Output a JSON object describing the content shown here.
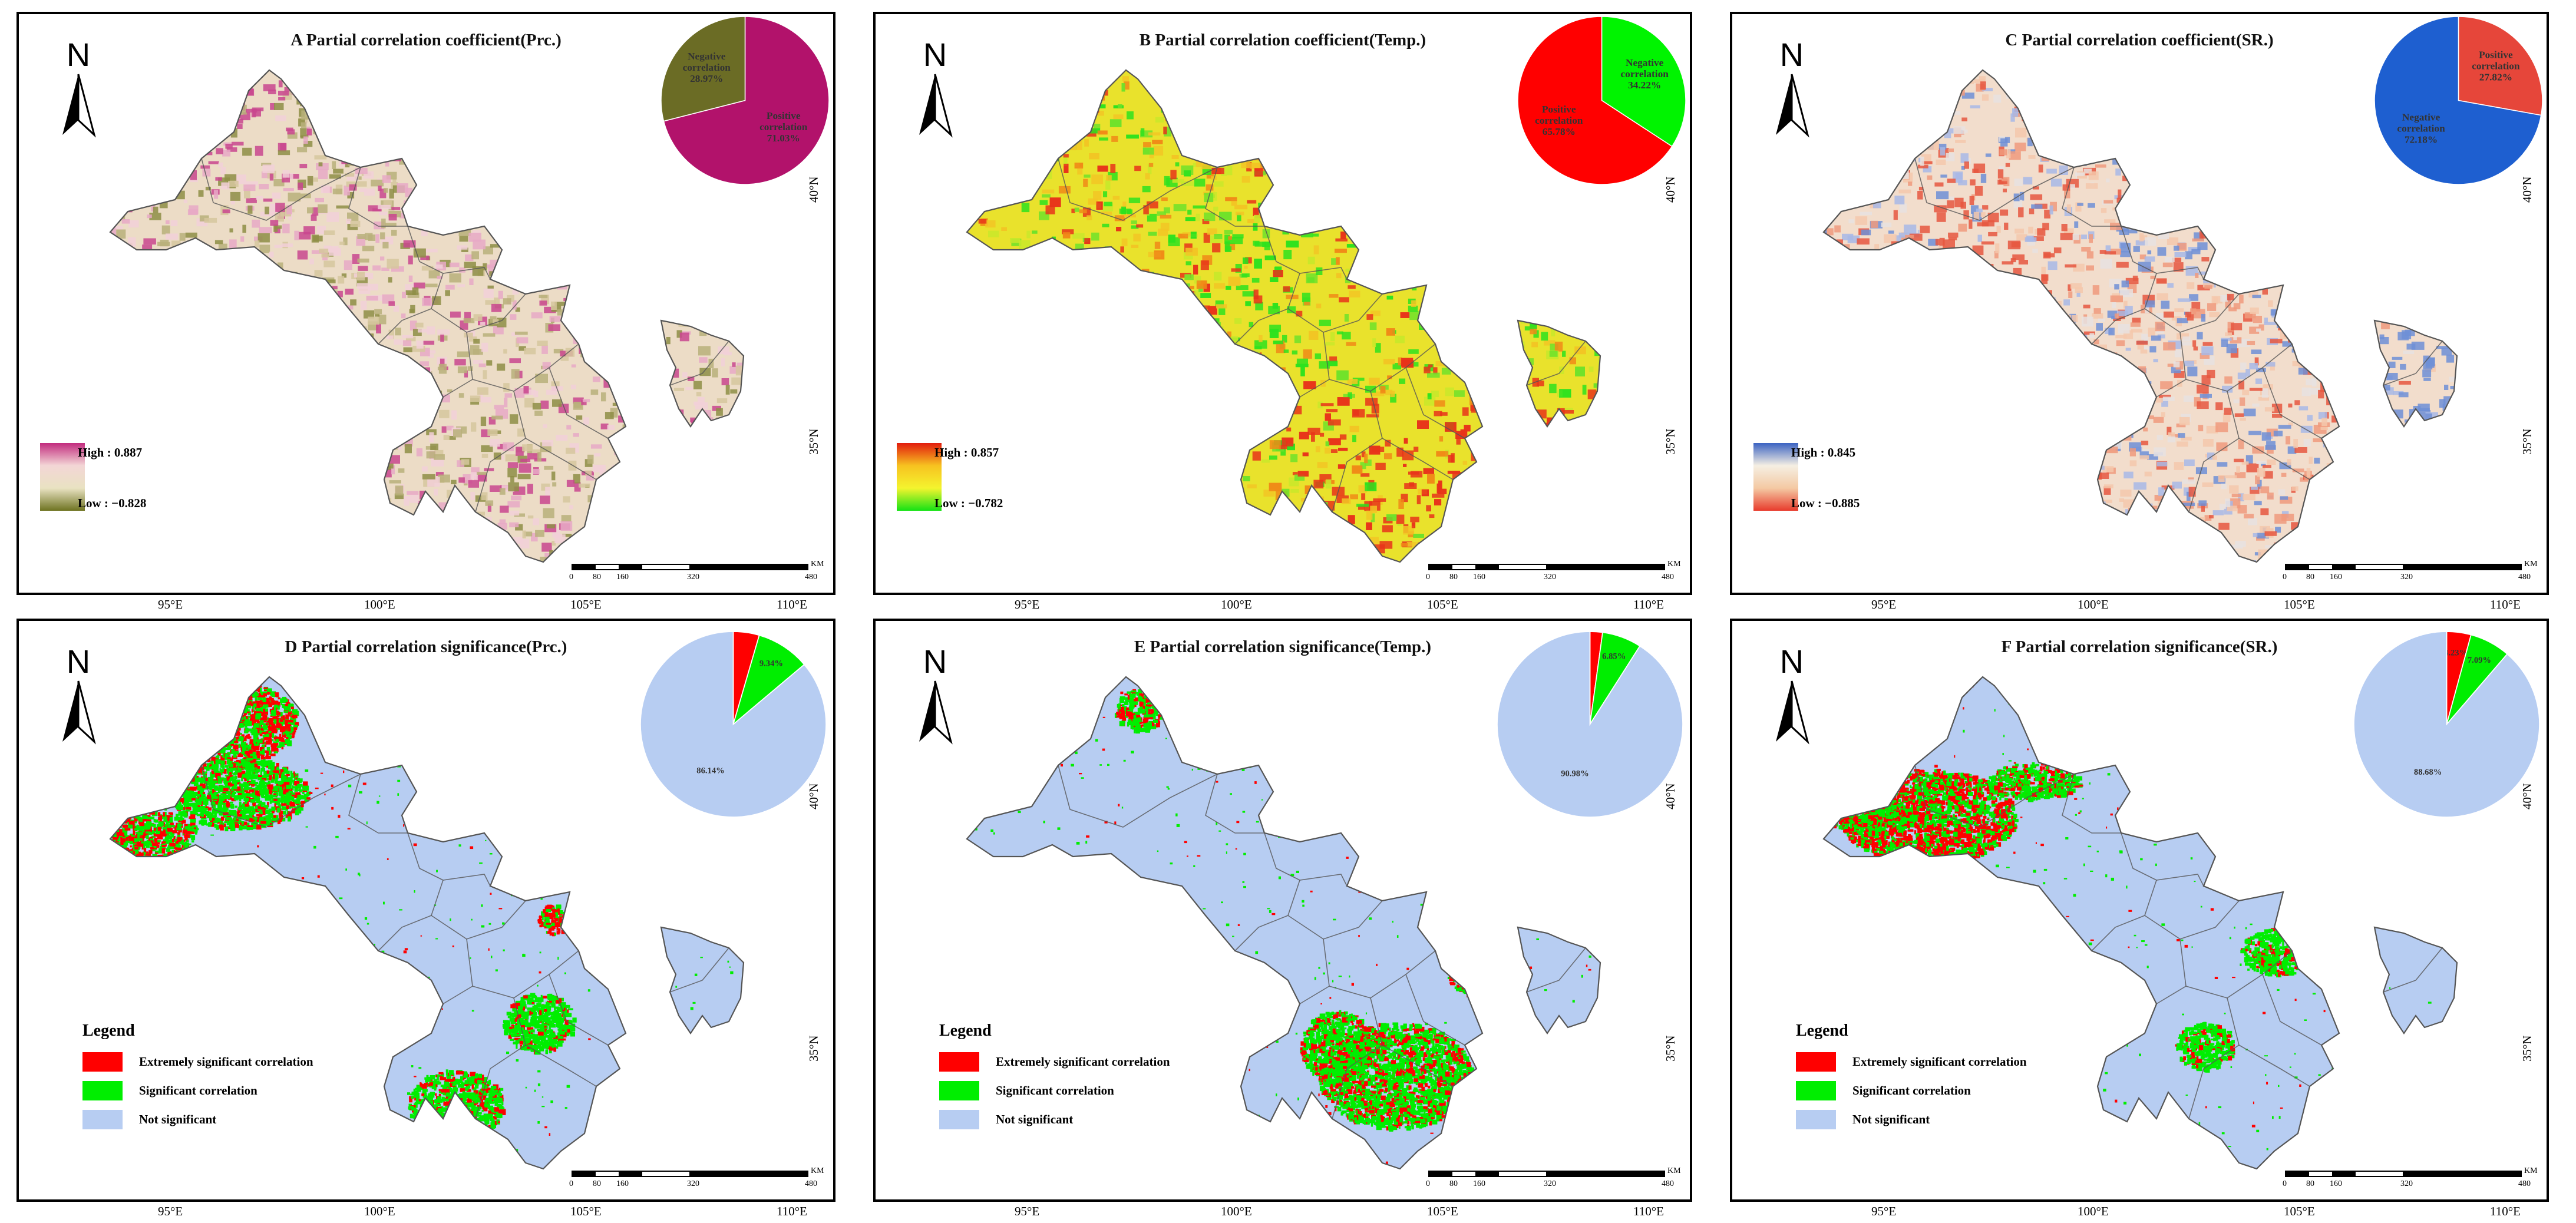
{
  "figure": {
    "panels": [
      {
        "id": "A",
        "title": "A Partial correlation coefficient(Prc.)",
        "north": "N",
        "map_style": "prc",
        "legend": {
          "type": "gradient",
          "high": "High : 0.887",
          "low": "Low : −0.828",
          "colors": [
            "#c22b7e",
            "#f3d6d6",
            "#e9e2c2",
            "#6e7321"
          ]
        },
        "pie": {
          "slices": [
            {
              "label": "Positive\ncorrelation\n71.03%",
              "value": 71.03,
              "color": "#b2126b"
            },
            {
              "label": "Negative\ncorrelation\n28.97%",
              "value": 28.97,
              "color": "#6b6c25"
            }
          ]
        },
        "lat_labels": [
          "40°N",
          "35°N"
        ],
        "lon_labels": [
          "95°E",
          "100°E",
          "105°E",
          "110°E"
        ],
        "scale_labels": [
          "0",
          "80",
          "160",
          "320",
          "480"
        ],
        "scale_unit": "KM"
      },
      {
        "id": "B",
        "title": "B Partial correlation coefficient(Temp.)",
        "north": "N",
        "map_style": "temp",
        "legend": {
          "type": "gradient",
          "high": "High : 0.857",
          "low": "Low : −0.782",
          "colors": [
            "#e21c0e",
            "#f7c220",
            "#f4f42e",
            "#14e215"
          ]
        },
        "pie": {
          "slices": [
            {
              "label": "Negative\ncorrelation\n34.22%",
              "value": 34.22,
              "color": "#00f400"
            },
            {
              "label": "Positive\ncorrelation\n65.78%",
              "value": 65.78,
              "color": "#ff0000"
            }
          ]
        },
        "lat_labels": [
          "40°N",
          "35°N"
        ],
        "lon_labels": [
          "95°E",
          "100°E",
          "105°E",
          "110°E"
        ],
        "scale_labels": [
          "0",
          "80",
          "160",
          "320",
          "480"
        ],
        "scale_unit": "KM"
      },
      {
        "id": "C",
        "title": "C Partial correlation coefficient(SR.)",
        "north": "N",
        "map_style": "sr",
        "legend": {
          "type": "gradient",
          "high": "High : 0.845",
          "low": "Low : −0.885",
          "colors": [
            "#3b63c2",
            "#f5efe3",
            "#f4c9a3",
            "#e83b2c"
          ]
        },
        "pie": {
          "slices": [
            {
              "label": "Positive\ncorrelation\n27.82%",
              "value": 27.82,
              "color": "#e6463a"
            },
            {
              "label": "Negative\ncorrelation\n72.18%",
              "value": 72.18,
              "color": "#1e5fd0"
            }
          ]
        },
        "lat_labels": [
          "40°N",
          "35°N"
        ],
        "lon_labels": [
          "95°E",
          "100°E",
          "105°E",
          "110°E"
        ],
        "scale_labels": [
          "0",
          "80",
          "160",
          "320",
          "480"
        ],
        "scale_unit": "KM"
      },
      {
        "id": "D",
        "title": "D Partial correlation significance(Prc.)",
        "north": "N",
        "map_style": "sig_prc",
        "legend": {
          "type": "categorical",
          "title": "Legend",
          "items": [
            {
              "label": "Extremely significant correlation",
              "color": "#ff0000"
            },
            {
              "label": "Significant correlation",
              "color": "#00ee00"
            },
            {
              "label": "Not significant",
              "color": "#b7cdf2"
            }
          ]
        },
        "pie": {
          "slices": [
            {
              "label": "",
              "value": 4.52,
              "color": "#ff0000"
            },
            {
              "label": "9.34%",
              "value": 9.34,
              "color": "#00ee00"
            },
            {
              "label": "86.14%",
              "value": 86.14,
              "color": "#b7cdf2"
            }
          ]
        },
        "lat_labels": [
          "40°N",
          "35°N"
        ],
        "lon_labels": [
          "95°E",
          "100°E",
          "105°E",
          "110°E"
        ],
        "scale_labels": [
          "0",
          "80",
          "160",
          "320",
          "480"
        ],
        "scale_unit": "KM"
      },
      {
        "id": "E",
        "title": "E Partial correlation significance(Temp.)",
        "north": "N",
        "map_style": "sig_temp",
        "legend": {
          "type": "categorical",
          "title": "Legend",
          "items": [
            {
              "label": "Extremely significant correlation",
              "color": "#ff0000"
            },
            {
              "label": "Significant correlation",
              "color": "#00ee00"
            },
            {
              "label": "Not significant",
              "color": "#b7cdf2"
            }
          ]
        },
        "pie": {
          "slices": [
            {
              "label": "2.18%",
              "value": 2.18,
              "color": "#ff0000"
            },
            {
              "label": "6.85%",
              "value": 6.85,
              "color": "#00ee00"
            },
            {
              "label": "90.98%",
              "value": 90.98,
              "color": "#b7cdf2"
            }
          ]
        },
        "lat_labels": [
          "40°N",
          "35°N"
        ],
        "lon_labels": [
          "95°E",
          "100°E",
          "105°E",
          "110°E"
        ],
        "scale_labels": [
          "0",
          "80",
          "160",
          "320",
          "480"
        ],
        "scale_unit": "KM"
      },
      {
        "id": "F",
        "title": "F Partial correlation significance(SR.)",
        "north": "N",
        "map_style": "sig_sr",
        "legend": {
          "type": "categorical",
          "title": "Legend",
          "items": [
            {
              "label": "Extremely significant correlation",
              "color": "#ff0000"
            },
            {
              "label": "Significant correlation",
              "color": "#00ee00"
            },
            {
              "label": "Not significant",
              "color": "#b7cdf2"
            }
          ]
        },
        "pie": {
          "slices": [
            {
              "label": "4.23%",
              "value": 4.23,
              "color": "#ff0000"
            },
            {
              "label": "7.09%",
              "value": 7.09,
              "color": "#00ee00"
            },
            {
              "label": "88.68%",
              "value": 88.68,
              "color": "#b7cdf2"
            }
          ]
        },
        "lat_labels": [
          "40°N",
          "35°N"
        ],
        "lon_labels": [
          "95°E",
          "100°E",
          "105°E",
          "110°E"
        ],
        "scale_labels": [
          "0",
          "80",
          "160",
          "320",
          "480"
        ],
        "scale_unit": "KM"
      }
    ]
  }
}
